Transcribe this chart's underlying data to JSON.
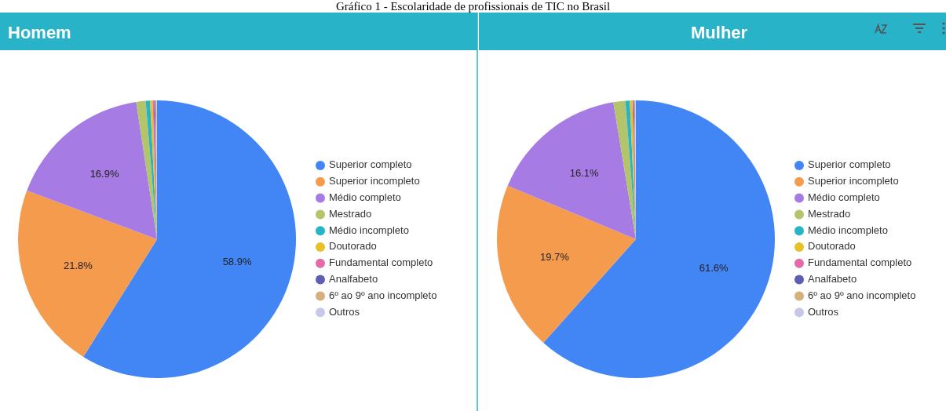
{
  "chart_data": [
    {
      "type": "pie",
      "title": "Homem",
      "annotations": [
        "Gráfico 1 - Escolaridade de profissionais de TIC no Brasil"
      ],
      "legend": "right",
      "categories": [
        "Superior completo",
        "Superior incompleto",
        "Médio completo",
        "Mestrado",
        "Médio incompleto",
        "Doutorado",
        "Fundamental completo",
        "Analfabeto",
        "6º ao 9º ano incompleto",
        "Outros"
      ],
      "values": [
        58.9,
        21.8,
        16.9,
        1.1,
        0.5,
        0.3,
        0.2,
        0.1,
        0.1,
        0.1
      ],
      "value_labels": [
        "58.9%",
        "21.8%",
        "16.9%",
        null,
        null,
        null,
        null,
        null,
        null,
        null
      ],
      "colors": [
        "#4285f4",
        "#f59b4e",
        "#a67ce4",
        "#b4c46a",
        "#26b5c6",
        "#e6c229",
        "#e66aa8",
        "#5c5fb3",
        "#d6b07c",
        "#c5c8e8"
      ]
    },
    {
      "type": "pie",
      "title": "Mulher",
      "legend": "right",
      "categories": [
        "Superior completo",
        "Superior incompleto",
        "Médio completo",
        "Mestrado",
        "Médio incompleto",
        "Doutorado",
        "Fundamental completo",
        "Analfabeto",
        "6º ao 9º ano incompleto",
        "Outros"
      ],
      "values": [
        61.6,
        19.7,
        16.1,
        1.4,
        0.5,
        0.3,
        0.1,
        0.1,
        0.1,
        0.1
      ],
      "value_labels": [
        "61.6%",
        "19.7%",
        "16.1%",
        null,
        null,
        null,
        null,
        null,
        null,
        null
      ],
      "colors": [
        "#4285f4",
        "#f59b4e",
        "#a67ce4",
        "#b4c46a",
        "#26b5c6",
        "#e6c229",
        "#e66aa8",
        "#5c5fb3",
        "#d6b07c",
        "#c5c8e8"
      ]
    }
  ]
}
